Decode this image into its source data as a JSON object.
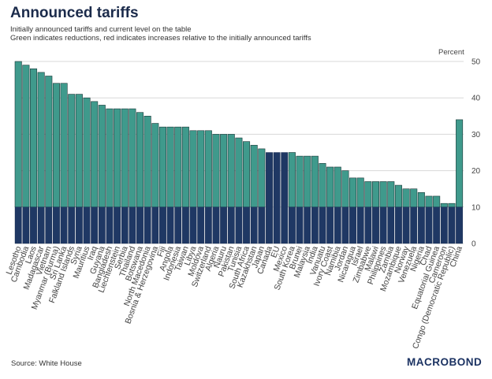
{
  "header": {
    "title": "Announced tariffs",
    "subtitle_1": "Initially announced tariffs and current level on the table",
    "subtitle_2": "Green indicates reductions, red indicates increases relative to the initially announced tariffs"
  },
  "footer": {
    "source": "Source: White House",
    "brand": "MACROBOND"
  },
  "colors": {
    "current": "#1f3864",
    "reduction": "#3f9a8c",
    "increase": "#c9524f",
    "grid": "#d8d8d8",
    "axis_text": "#444444"
  },
  "chart_data": {
    "type": "bar",
    "unit_label": "Percent",
    "ylim": [
      0,
      50
    ],
    "yticks": [
      0,
      10,
      20,
      30,
      40,
      50
    ],
    "grid": true,
    "y_axis_side": "right",
    "categories": [
      "Lesotho",
      "Cambodia",
      "Laos",
      "Madagascar",
      "Vietnam",
      "Myanmar (Burma)",
      "Sri Lanka",
      "Falkland Islands",
      "Syria",
      "Mauritius",
      "Iraq",
      "Guyana",
      "Bangladesh",
      "Liechtenstein",
      "Serbia",
      "Thailand",
      "Botswana",
      "North Macedonia",
      "Bosnia & Herzegovina",
      "Fiji",
      "Angola",
      "Indonesia",
      "Taiwan",
      "Libya",
      "Moldova",
      "Switzerland",
      "Algeria",
      "Nauru",
      "Pakistan",
      "Tunisia",
      "South Africa",
      "Kazakhstan",
      "Japan",
      "Canada",
      "EU",
      "Mexico",
      "South Korea",
      "Brunei",
      "Malaysia",
      "India",
      "Vanuatu",
      "Ivory Coast",
      "Namibia",
      "Jordan",
      "Nicaragua",
      "Israel",
      "Zimbabwe",
      "Malawi",
      "Philippines",
      "Zambia",
      "Mozambique",
      "Norway",
      "Venezuela",
      "Nigeria",
      "Chad",
      "Equatorial Guinea",
      "Cameroon",
      "Congo (Democratic Republic)",
      "China"
    ],
    "series": [
      {
        "name": "Initially announced",
        "values": [
          50,
          49,
          48,
          47,
          46,
          44,
          44,
          41,
          41,
          40,
          39,
          38,
          37,
          37,
          37,
          37,
          36,
          35,
          33,
          32,
          32,
          32,
          32,
          31,
          31,
          31,
          30,
          30,
          30,
          29,
          28,
          27,
          26,
          25,
          25,
          25,
          25,
          24,
          24,
          24,
          22,
          21,
          21,
          20,
          18,
          18,
          17,
          17,
          17,
          17,
          16,
          15,
          15,
          14,
          13,
          13,
          11,
          11,
          34
        ]
      },
      {
        "name": "Current level",
        "values": [
          10,
          10,
          10,
          10,
          10,
          10,
          10,
          10,
          10,
          10,
          10,
          10,
          10,
          10,
          10,
          10,
          10,
          10,
          10,
          10,
          10,
          10,
          10,
          10,
          10,
          10,
          10,
          10,
          10,
          10,
          10,
          10,
          10,
          25,
          25,
          25,
          10,
          10,
          10,
          10,
          10,
          10,
          10,
          10,
          10,
          10,
          10,
          10,
          10,
          10,
          10,
          10,
          10,
          10,
          10,
          10,
          10,
          10,
          10
        ]
      }
    ]
  }
}
